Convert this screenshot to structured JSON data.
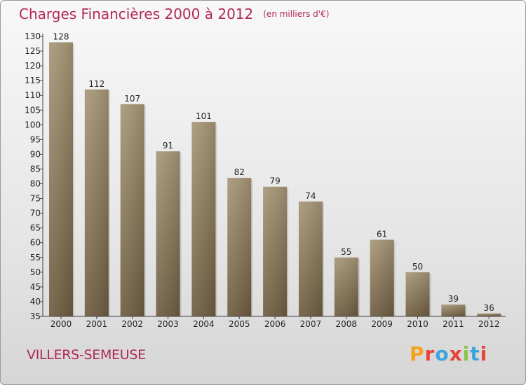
{
  "header": {
    "title": "Charges Financières 2000 à 2012",
    "unit": "(en milliers d'€)"
  },
  "footer": {
    "city": "VILLERS-SEMEUSE",
    "logo": "Proxiti"
  },
  "colors": {
    "title": "#b0285a",
    "bar_top": "#a79777",
    "bar_bottom": "#6e5c40",
    "logo": [
      "#f5a21b",
      "#e8433a",
      "#3da5dc",
      "#e8433a",
      "#8bc34a",
      "#3da5dc",
      "#e8433a"
    ]
  },
  "chart_data": {
    "type": "bar",
    "title": "Charges Financières 2000 à 2012",
    "ylabel": "(en milliers d'€)",
    "categories": [
      "2000",
      "2001",
      "2002",
      "2003",
      "2004",
      "2005",
      "2006",
      "2007",
      "2008",
      "2009",
      "2010",
      "2011",
      "2012"
    ],
    "values": [
      128,
      112,
      107,
      91,
      101,
      82,
      79,
      74,
      55,
      61,
      50,
      39,
      36
    ],
    "ylim": [
      35,
      130
    ],
    "yticks": [
      35,
      40,
      45,
      50,
      55,
      60,
      65,
      70,
      75,
      80,
      85,
      90,
      95,
      100,
      105,
      110,
      115,
      120,
      125,
      130
    ],
    "grid": false,
    "legend": "none"
  }
}
